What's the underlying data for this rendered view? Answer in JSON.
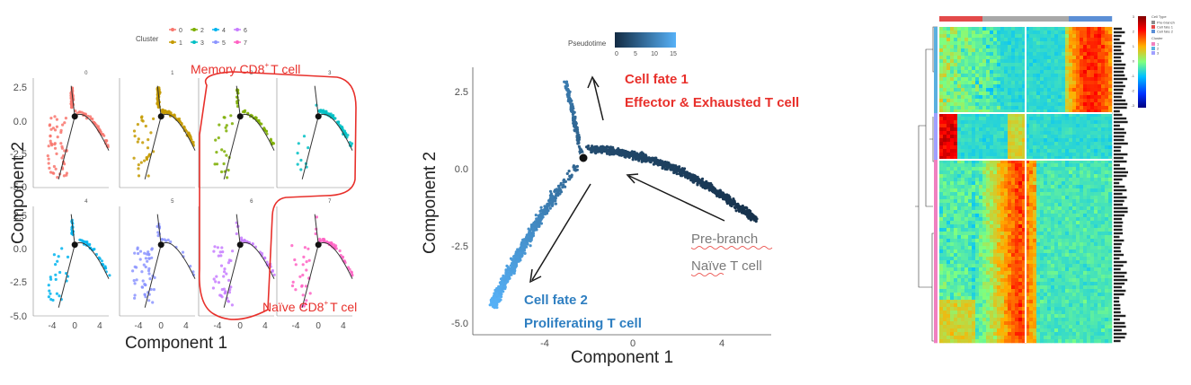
{
  "panelA": {
    "legend_title": "Cluster",
    "legend": [
      {
        "label": "0",
        "color": "#f8766d"
      },
      {
        "label": "1",
        "color": "#c49a00"
      },
      {
        "label": "2",
        "color": "#7cae00"
      },
      {
        "label": "3",
        "color": "#00bfc4"
      },
      {
        "label": "4",
        "color": "#00b4ef"
      },
      {
        "label": "5",
        "color": "#8b94ff"
      },
      {
        "label": "6",
        "color": "#c77cff"
      },
      {
        "label": "7",
        "color": "#ff61c3"
      }
    ],
    "xlabel": "Component 1",
    "ylabel": "Component 2",
    "xticks": [
      "-4",
      "0",
      "4"
    ],
    "yticks": [
      "2.5",
      "0.0",
      "-2.5",
      "-5.0"
    ],
    "annotation_memory": "Memory CD8",
    "annotation_memory_sup": "+",
    "annotation_memory_suffix": "T cell",
    "annotation_naive": "Naïve CD8",
    "annotation_naive_sup": "+",
    "annotation_naive_suffix": "T cel",
    "accent": "#e8302b"
  },
  "panelB": {
    "legend_title": "Pseudotime",
    "legend_ticks": [
      "0",
      "5",
      "10",
      "15"
    ],
    "xlabel": "Component 1",
    "ylabel": "Component 2",
    "xticks": [
      "-4",
      "0",
      "4"
    ],
    "yticks": [
      "2.5",
      "0.0",
      "-2.5",
      "-5.0"
    ],
    "fate1_line1": "Cell fate 1",
    "fate1_line2": "Effector & Exhausted T cell",
    "fate2_line1": "Cell fate 2",
    "fate2_line2": "Proliferating T cell",
    "pre_line1": "Pre-branch",
    "pre_line2": "Naïve T cell",
    "fate1_color": "#e8302b",
    "fate2_color": "#2f7fc1",
    "pre_color": "#7a7a7a"
  },
  "panelC": {
    "legend_celltype_title": "Cell Type",
    "legend_celltype": [
      {
        "label": "Pre-branch",
        "color": "#8c8c8c"
      },
      {
        "label": "Cell fate 1",
        "color": "#e34a4a"
      },
      {
        "label": "Cell fate 2",
        "color": "#5b8fd6"
      }
    ],
    "legend_cluster_title": "Cluster",
    "legend_cluster": [
      {
        "label": "1",
        "color": "#f080c0"
      },
      {
        "label": "2",
        "color": "#5ab0e0"
      },
      {
        "label": "3",
        "color": "#a0a0ff"
      }
    ],
    "colorbar_ticks": [
      "3",
      "2",
      "1",
      "0",
      "-1",
      "-2",
      "-3"
    ]
  },
  "chart_data": [
    {
      "type": "scatter",
      "panel": "faceted trajectory by cluster",
      "facets": [
        "0",
        "1",
        "2",
        "3",
        "4",
        "5",
        "6",
        "7"
      ],
      "xlim": [
        -6,
        6
      ],
      "ylim": [
        -5,
        3
      ],
      "xlabel": "Component 1",
      "ylabel": "Component 2"
    },
    {
      "type": "scatter",
      "panel": "pseudotime trajectory",
      "xlim": [
        -7,
        6
      ],
      "ylim": [
        -5,
        3
      ],
      "xlabel": "Component 1",
      "ylabel": "Component 2",
      "color_scale": {
        "min": 0,
        "max": 15
      }
    },
    {
      "type": "heatmap",
      "panel": "branched heatmap",
      "value_range": [
        -3,
        3
      ]
    }
  ]
}
